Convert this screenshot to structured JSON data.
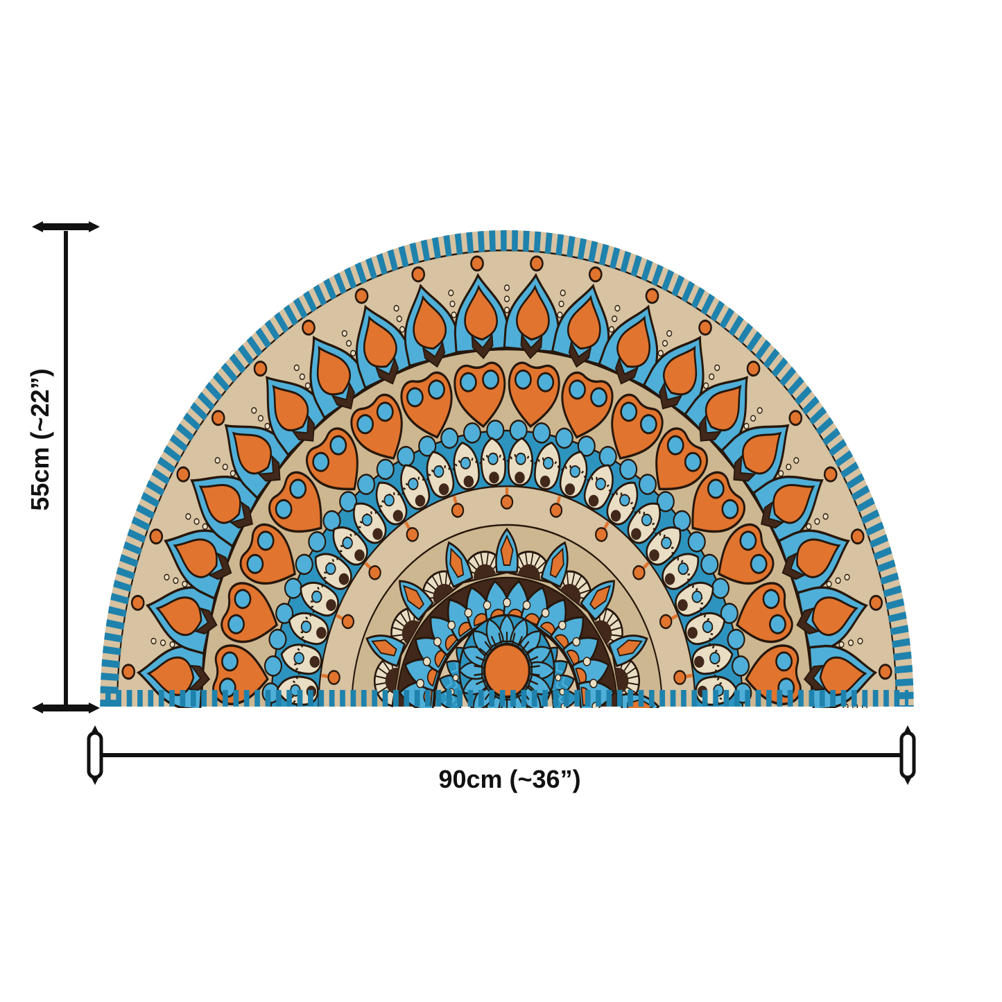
{
  "figure": {
    "subject": "Half-moon mandala doormat with size annotations",
    "background": "#ffffff"
  },
  "dimensions": {
    "height_label": "55cm (~22”)",
    "width_label": "90cm (~36”)"
  },
  "colors": {
    "background": "#ffffff",
    "dimension_ink": "#111111",
    "stitch_teal": "#1e82ad",
    "blue": "#4fafd8",
    "blue_medium": "#2d94c0",
    "orange": "#e1742e",
    "tan": "#d7c2a1",
    "tan_deep": "#cdb791",
    "cream": "#e9dec4",
    "brown": "#41281a",
    "outline": "#26170b"
  },
  "mandala": {
    "bands": [
      {
        "name": "outer-arch-ring",
        "type": "arches",
        "count": 20
      },
      {
        "name": "orange-heart-ring",
        "type": "hearts",
        "count": 16,
        "scallops": 32
      },
      {
        "name": "teardrop-fan-ring",
        "type": "teardrops",
        "count": 24
      },
      {
        "name": "plain-ring-drops",
        "type": "drops",
        "count": 11
      },
      {
        "name": "fan-and-lotus-ring",
        "type": "fans",
        "count": 8
      },
      {
        "name": "blue-petal-ring",
        "type": "petals",
        "count": 14
      },
      {
        "name": "feather-ring",
        "type": "feathers",
        "count": 14
      },
      {
        "name": "sun-core",
        "type": "core",
        "count": 16,
        "spokes": 26
      },
      {
        "name": "rim-stitch",
        "type": "stitch"
      }
    ]
  }
}
